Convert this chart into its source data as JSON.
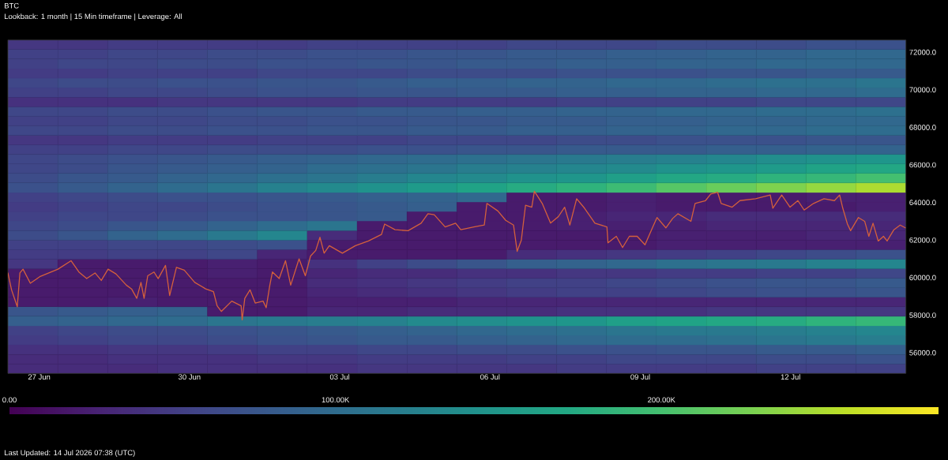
{
  "chart_data": [
    {
      "type": "heatmap",
      "title": "BTC",
      "subtitle": "Lookback: 1 month | 15 Min timeframe | Leverage: All",
      "annotations": [
        "Last Updated: 14 Jul 2026 07:38 (UTC)"
      ],
      "categories": [
        null,
        null,
        null,
        null,
        null,
        null,
        null,
        null,
        null,
        null,
        null,
        null,
        null,
        null,
        null,
        null,
        null,
        null
      ],
      "y_categories": [
        null,
        null,
        null,
        null,
        null,
        null,
        null,
        null,
        null,
        null,
        null,
        null,
        null,
        null,
        null,
        null,
        null,
        null,
        null,
        null,
        null,
        null,
        null,
        null,
        null,
        null,
        null,
        null,
        null,
        null,
        null,
        null,
        null,
        null,
        null
      ],
      "cells": [
        [
          45000,
          45000,
          50000,
          50000,
          50000,
          50000,
          55000,
          55000,
          55000,
          55000,
          60000,
          60000,
          60000,
          65000,
          65000,
          65000,
          70000,
          70000
        ],
        [
          55000,
          55000,
          60000,
          60000,
          65000,
          65000,
          70000,
          70000,
          75000,
          75000,
          80000,
          80000,
          85000,
          85000,
          90000,
          90000,
          95000,
          95000
        ],
        [
          55000,
          60000,
          60000,
          65000,
          65000,
          70000,
          70000,
          75000,
          75000,
          80000,
          80000,
          85000,
          85000,
          90000,
          90000,
          95000,
          95000,
          95000
        ],
        [
          50000,
          50000,
          55000,
          55000,
          55000,
          60000,
          60000,
          60000,
          65000,
          65000,
          65000,
          70000,
          70000,
          70000,
          75000,
          75000,
          80000,
          80000
        ],
        [
          60000,
          65000,
          65000,
          70000,
          70000,
          75000,
          75000,
          80000,
          85000,
          85000,
          90000,
          90000,
          95000,
          95000,
          100000,
          105000,
          105000,
          110000
        ],
        [
          55000,
          55000,
          60000,
          60000,
          65000,
          70000,
          70000,
          75000,
          75000,
          80000,
          80000,
          85000,
          85000,
          90000,
          90000,
          95000,
          95000,
          100000
        ],
        [
          40000,
          40000,
          40000,
          45000,
          45000,
          45000,
          45000,
          50000,
          50000,
          50000,
          50000,
          55000,
          55000,
          55000,
          55000,
          60000,
          60000,
          60000
        ],
        [
          60000,
          60000,
          65000,
          65000,
          70000,
          75000,
          75000,
          80000,
          80000,
          85000,
          85000,
          90000,
          90000,
          95000,
          95000,
          100000,
          100000,
          105000
        ],
        [
          55000,
          55000,
          60000,
          60000,
          65000,
          65000,
          70000,
          70000,
          75000,
          75000,
          80000,
          80000,
          85000,
          85000,
          90000,
          90000,
          95000,
          95000
        ],
        [
          60000,
          60000,
          65000,
          65000,
          70000,
          70000,
          75000,
          75000,
          80000,
          80000,
          85000,
          85000,
          90000,
          90000,
          95000,
          95000,
          100000,
          100000
        ],
        [
          45000,
          45000,
          50000,
          50000,
          50000,
          55000,
          55000,
          55000,
          60000,
          60000,
          60000,
          65000,
          65000,
          70000,
          70000,
          70000,
          75000,
          75000
        ],
        [
          55000,
          55000,
          60000,
          60000,
          65000,
          65000,
          65000,
          70000,
          70000,
          75000,
          75000,
          80000,
          80000,
          80000,
          85000,
          85000,
          90000,
          90000
        ],
        [
          60000,
          65000,
          70000,
          75000,
          80000,
          85000,
          90000,
          95000,
          100000,
          105000,
          110000,
          115000,
          120000,
          125000,
          130000,
          140000,
          145000,
          150000
        ],
        [
          60000,
          65000,
          75000,
          80000,
          85000,
          90000,
          100000,
          105000,
          110000,
          120000,
          125000,
          130000,
          135000,
          145000,
          150000,
          155000,
          165000,
          170000
        ],
        [
          65000,
          75000,
          80000,
          90000,
          95000,
          105000,
          110000,
          120000,
          130000,
          135000,
          145000,
          150000,
          160000,
          170000,
          175000,
          185000,
          190000,
          200000
        ],
        [
          70000,
          80000,
          90000,
          100000,
          110000,
          125000,
          135000,
          145000,
          155000,
          165000,
          175000,
          185000,
          195000,
          210000,
          220000,
          230000,
          240000,
          250000
        ],
        [
          55000,
          60000,
          65000,
          70000,
          70000,
          75000,
          80000,
          85000,
          90000,
          95000,
          20000,
          20000,
          25000,
          20000,
          20000,
          20000,
          25000,
          25000
        ],
        [
          50000,
          55000,
          60000,
          60000,
          65000,
          70000,
          75000,
          80000,
          85000,
          20000,
          20000,
          20000,
          25000,
          20000,
          20000,
          20000,
          20000,
          25000
        ],
        [
          55000,
          60000,
          60000,
          65000,
          70000,
          70000,
          75000,
          80000,
          20000,
          20000,
          20000,
          25000,
          30000,
          30000,
          35000,
          35000,
          35000,
          35000
        ],
        [
          60000,
          65000,
          75000,
          80000,
          90000,
          100000,
          110000,
          20000,
          20000,
          20000,
          20000,
          25000,
          25000,
          25000,
          30000,
          30000,
          30000,
          30000
        ],
        [
          65000,
          75000,
          90000,
          100000,
          115000,
          130000,
          35000,
          20000,
          20000,
          20000,
          20000,
          20000,
          20000,
          25000,
          25000,
          25000,
          30000,
          30000
        ],
        [
          55000,
          55000,
          60000,
          60000,
          65000,
          70000,
          20000,
          20000,
          20000,
          20000,
          20000,
          20000,
          20000,
          25000,
          25000,
          25000,
          25000,
          25000
        ],
        [
          50000,
          50000,
          55000,
          55000,
          60000,
          30000,
          20000,
          20000,
          20000,
          20000,
          35000,
          40000,
          45000,
          50000,
          55000,
          60000,
          65000,
          70000
        ],
        [
          45000,
          20000,
          20000,
          20000,
          25000,
          20000,
          40000,
          55000,
          65000,
          75000,
          85000,
          90000,
          95000,
          105000,
          110000,
          115000,
          125000,
          130000
        ],
        [
          20000,
          20000,
          20000,
          20000,
          25000,
          20000,
          30000,
          35000,
          35000,
          40000,
          40000,
          45000,
          45000,
          50000,
          50000,
          55000,
          55000,
          60000
        ],
        [
          20000,
          20000,
          20000,
          20000,
          20000,
          20000,
          35000,
          40000,
          45000,
          50000,
          55000,
          55000,
          60000,
          65000,
          70000,
          75000,
          75000,
          80000
        ],
        [
          20000,
          20000,
          20000,
          20000,
          20000,
          20000,
          30000,
          35000,
          40000,
          45000,
          50000,
          55000,
          55000,
          60000,
          65000,
          70000,
          70000,
          75000
        ],
        [
          20000,
          20000,
          25000,
          20000,
          20000,
          20000,
          25000,
          25000,
          25000,
          30000,
          30000,
          30000,
          30000,
          30000,
          30000,
          30000,
          30000,
          30000
        ],
        [
          75000,
          80000,
          85000,
          90000,
          20000,
          20000,
          30000,
          30000,
          35000,
          35000,
          35000,
          40000,
          40000,
          40000,
          45000,
          45000,
          45000,
          45000
        ],
        [
          85000,
          90000,
          95000,
          100000,
          110000,
          115000,
          120000,
          125000,
          135000,
          140000,
          145000,
          150000,
          160000,
          165000,
          170000,
          175000,
          185000,
          190000
        ],
        [
          55000,
          60000,
          65000,
          65000,
          70000,
          75000,
          80000,
          85000,
          90000,
          95000,
          100000,
          105000,
          110000,
          115000,
          115000,
          120000,
          125000,
          130000
        ],
        [
          50000,
          55000,
          60000,
          60000,
          65000,
          70000,
          75000,
          80000,
          80000,
          85000,
          90000,
          95000,
          100000,
          100000,
          105000,
          110000,
          115000,
          120000
        ],
        [
          40000,
          40000,
          45000,
          45000,
          50000,
          55000,
          55000,
          60000,
          60000,
          65000,
          65000,
          70000,
          70000,
          75000,
          75000,
          80000,
          80000,
          85000
        ],
        [
          35000,
          35000,
          40000,
          40000,
          40000,
          45000,
          45000,
          50000,
          50000,
          50000,
          55000,
          55000,
          60000,
          60000,
          60000,
          65000,
          65000,
          70000
        ],
        [
          35000,
          35000,
          35000,
          40000,
          40000,
          40000,
          40000,
          45000,
          45000,
          45000,
          45000,
          50000,
          50000,
          50000,
          50000,
          55000,
          55000,
          55000
        ]
      ],
      "clim": [
        0,
        285000
      ],
      "cticks": [
        {
          "value": 0,
          "label": "0.00"
        },
        {
          "value": 100000,
          "label": "100.00K"
        },
        {
          "value": 200000,
          "label": "200.00K"
        }
      ]
    },
    {
      "type": "line",
      "xlim": [
        "2026-06-26T09:00",
        "2026-07-14T07:15"
      ],
      "xticks": [
        {
          "value": "2026-06-27",
          "label": "27 Jun"
        },
        {
          "value": "2026-06-30",
          "label": "30 Jun"
        },
        {
          "value": "2026-07-03",
          "label": "03 Jul"
        },
        {
          "value": "2026-07-06",
          "label": "06 Jul"
        },
        {
          "value": "2026-07-09",
          "label": "09 Jul"
        },
        {
          "value": "2026-07-12",
          "label": "12 Jul"
        }
      ],
      "ylim": [
        54900,
        72650
      ],
      "yticks": [
        {
          "value": 56000,
          "label": "56000.0"
        },
        {
          "value": 58000,
          "label": "58000.0"
        },
        {
          "value": 60000,
          "label": "60000.0"
        },
        {
          "value": 62000,
          "label": "62000.0"
        },
        {
          "value": 64000,
          "label": "64000.0"
        },
        {
          "value": 66000,
          "label": "66000.0"
        },
        {
          "value": 68000,
          "label": "68000.0"
        },
        {
          "value": 70000,
          "label": "70000.0"
        },
        {
          "value": 72000,
          "label": "72000.0"
        }
      ],
      "series": [
        {
          "color": "#d4603c",
          "x": [
            "2026-06-26T09:00",
            "2026-06-26T10:45",
            "2026-06-26T13:30",
            "2026-06-26T14:45",
            "2026-06-26T16:15",
            "2026-06-26T19:45",
            "2026-06-27T00:15",
            "2026-06-27T09:00",
            "2026-06-27T15:15",
            "2026-06-27T19:00",
            "2026-06-27T22:45",
            "2026-06-28T02:45",
            "2026-06-28T05:45",
            "2026-06-28T09:00",
            "2026-06-28T12:45",
            "2026-06-28T17:45",
            "2026-06-28T20:15",
            "2026-06-28T22:45",
            "2026-06-29T00:45",
            "2026-06-29T02:15",
            "2026-06-29T04:00",
            "2026-06-29T07:00",
            "2026-06-29T09:00",
            "2026-06-29T12:30",
            "2026-06-29T14:30",
            "2026-06-29T17:00",
            "2026-06-29T17:45",
            "2026-06-29T21:30",
            "2026-06-30T02:30",
            "2026-06-30T07:45",
            "2026-06-30T11:30",
            "2026-06-30T13:15",
            "2026-06-30T15:15",
            "2026-06-30T20:15",
            "2026-07-01T00:45",
            "2026-07-01T01:15",
            "2026-07-01T02:30",
            "2026-07-01T05:00",
            "2026-07-01T07:30",
            "2026-07-01T11:15",
            "2026-07-01T12:45",
            "2026-07-01T14:30",
            "2026-07-01T15:45",
            "2026-07-01T19:00",
            "2026-07-01T22:00",
            "2026-07-02T00:30",
            "2026-07-02T04:30",
            "2026-07-02T07:30",
            "2026-07-02T10:00",
            "2026-07-02T12:30",
            "2026-07-02T14:30",
            "2026-07-02T16:30",
            "2026-07-02T19:00",
            "2026-07-03T01:15",
            "2026-07-03T07:30",
            "2026-07-03T13:45",
            "2026-07-03T20:00",
            "2026-07-03T21:30",
            "2026-07-04T02:30",
            "2026-07-04T08:45",
            "2026-07-04T15:00",
            "2026-07-04T18:15",
            "2026-07-04T21:15",
            "2026-07-05T02:30",
            "2026-07-05T07:30",
            "2026-07-05T10:00",
            "2026-07-05T16:15",
            "2026-07-05T21:15",
            "2026-07-05T22:30",
            "2026-07-06T03:45",
            "2026-07-06T07:30",
            "2026-07-06T11:15",
            "2026-07-06T13:00",
            "2026-07-06T15:00",
            "2026-07-06T17:00",
            "2026-07-06T20:00",
            "2026-07-06T21:15",
            "2026-07-07T01:00",
            "2026-07-07T05:00",
            "2026-07-07T08:45",
            "2026-07-07T11:45",
            "2026-07-07T14:15",
            "2026-07-07T17:30",
            "2026-07-07T21:15",
            "2026-07-08T02:15",
            "2026-07-08T08:00",
            "2026-07-08T08:30",
            "2026-07-08T12:30",
            "2026-07-08T15:30",
            "2026-07-08T18:45",
            "2026-07-08T22:30",
            "2026-07-09T02:15",
            "2026-07-09T06:00",
            "2026-07-09T08:00",
            "2026-07-09T12:15",
            "2026-07-09T15:30",
            "2026-07-09T18:00",
            "2026-07-10T00:15",
            "2026-07-10T02:15",
            "2026-07-10T07:15",
            "2026-07-10T09:45",
            "2026-07-10T13:00",
            "2026-07-10T14:45",
            "2026-07-10T20:00",
            "2026-07-10T23:45",
            "2026-07-11T07:15",
            "2026-07-11T14:15",
            "2026-07-11T15:30",
            "2026-07-11T19:45",
            "2026-07-11T23:45",
            "2026-07-12T03:30",
            "2026-07-12T06:30",
            "2026-07-12T11:00",
            "2026-07-12T16:00",
            "2026-07-12T21:00",
            "2026-07-12T23:30",
            "2026-07-13T01:00",
            "2026-07-13T03:15",
            "2026-07-13T04:45",
            "2026-07-13T08:30",
            "2026-07-13T11:30",
            "2026-07-13T13:30",
            "2026-07-13T15:30",
            "2026-07-13T18:00",
            "2026-07-13T20:30",
            "2026-07-13T22:15",
            "2026-07-14T01:30",
            "2026-07-14T04:30",
            "2026-07-14T07:00"
          ],
          "values": [
            60250,
            59350,
            58450,
            60250,
            60450,
            59700,
            60050,
            60450,
            60900,
            60300,
            59950,
            60250,
            59850,
            60450,
            60200,
            59600,
            59400,
            58900,
            59750,
            58900,
            60100,
            60300,
            59950,
            60650,
            59050,
            60200,
            60550,
            60400,
            59750,
            59400,
            59250,
            58500,
            58200,
            58750,
            58500,
            57750,
            58900,
            59350,
            58650,
            58750,
            58400,
            59600,
            60300,
            59950,
            60900,
            59600,
            61000,
            60100,
            61150,
            61450,
            62150,
            61300,
            61700,
            61300,
            61700,
            61950,
            62300,
            62850,
            62550,
            62500,
            62900,
            63400,
            63350,
            62700,
            62900,
            62550,
            62700,
            62800,
            63950,
            63550,
            63050,
            62800,
            61400,
            62000,
            63850,
            63750,
            64600,
            63950,
            62900,
            63250,
            63750,
            62800,
            64200,
            63700,
            62900,
            62700,
            61850,
            62200,
            61600,
            62200,
            62200,
            61750,
            62700,
            63200,
            62650,
            63150,
            63400,
            63000,
            63950,
            64100,
            64450,
            64550,
            63950,
            63750,
            64100,
            64200,
            64400,
            63700,
            64400,
            63750,
            64100,
            63600,
            63950,
            64200,
            64100,
            64400,
            63700,
            62850,
            62500,
            63200,
            63000,
            62200,
            62900,
            61950,
            62200,
            61950,
            62550,
            62800,
            62650
          ]
        }
      ]
    }
  ]
}
